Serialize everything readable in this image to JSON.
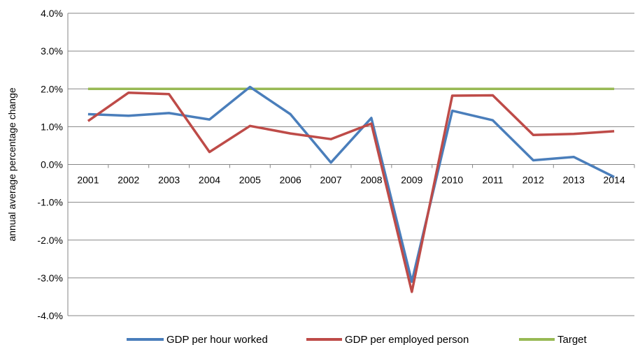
{
  "chart_data": {
    "type": "line",
    "title": "",
    "xlabel": "",
    "ylabel": "annual average percentage change",
    "categories": [
      "2001",
      "2002",
      "2003",
      "2004",
      "2005",
      "2006",
      "2007",
      "2008",
      "2009",
      "2010",
      "2011",
      "2012",
      "2013",
      "2014"
    ],
    "ylim": [
      -4.0,
      4.0
    ],
    "yticks": [
      4.0,
      3.0,
      2.0,
      1.0,
      0.0,
      -1.0,
      -2.0,
      -3.0,
      -4.0
    ],
    "ytick_labels": [
      "4.0%",
      "3.0%",
      "2.0%",
      "1.0%",
      "0.0%",
      "-1.0%",
      "-2.0%",
      "-3.0%",
      "-4.0%"
    ],
    "grid": "horizontal",
    "legend_position": "bottom",
    "series": [
      {
        "name": "GDP per hour worked",
        "color": "#4a7ebb",
        "values": [
          1.33,
          1.29,
          1.36,
          1.19,
          2.05,
          1.33,
          0.05,
          1.23,
          -3.1,
          1.42,
          1.17,
          0.11,
          0.2,
          -0.33
        ]
      },
      {
        "name": "GDP per employed person",
        "color": "#be4b48",
        "values": [
          1.15,
          1.9,
          1.86,
          0.33,
          1.02,
          0.82,
          0.67,
          1.08,
          -3.37,
          1.82,
          1.83,
          0.78,
          0.81,
          0.88
        ]
      },
      {
        "name": "Target",
        "color": "#98b954",
        "values": [
          2.0,
          2.0,
          2.0,
          2.0,
          2.0,
          2.0,
          2.0,
          2.0,
          2.0,
          2.0,
          2.0,
          2.0,
          2.0,
          2.0
        ]
      }
    ]
  }
}
